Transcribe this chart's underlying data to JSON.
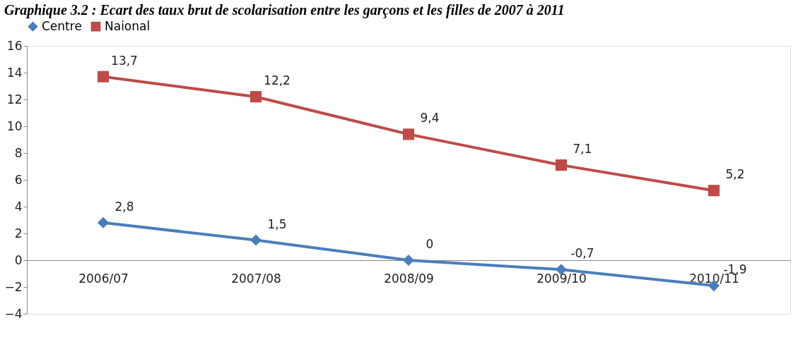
{
  "chart_data": {
    "type": "line",
    "title": "Graphique 3.2 : Ecart des taux brut de scolarisation entre les garçons et les filles de 2007 à 2011",
    "categories": [
      "2006/07",
      "2007/08",
      "2008/09",
      "2009/10",
      "2010/11"
    ],
    "series": [
      {
        "name": "Centre",
        "color": "#4a7ebb",
        "marker": "diamond",
        "values": [
          2.8,
          1.5,
          0,
          -0.7,
          -1.9
        ],
        "value_labels": [
          "2,8",
          "1,5",
          "0",
          "-0,7",
          "-1,9"
        ]
      },
      {
        "name": "Naional",
        "color": "#be4b48",
        "marker": "square",
        "values": [
          13.7,
          12.2,
          9.4,
          7.1,
          5.2
        ],
        "value_labels": [
          "13,7",
          "12,2",
          "9,4",
          "7,1",
          "5,2"
        ]
      }
    ],
    "ylim": [
      -4,
      16
    ],
    "yticks": [
      -4,
      -2,
      0,
      2,
      4,
      6,
      8,
      10,
      12,
      14,
      16
    ],
    "grid": false,
    "legend": "top",
    "line_style": "solid"
  }
}
